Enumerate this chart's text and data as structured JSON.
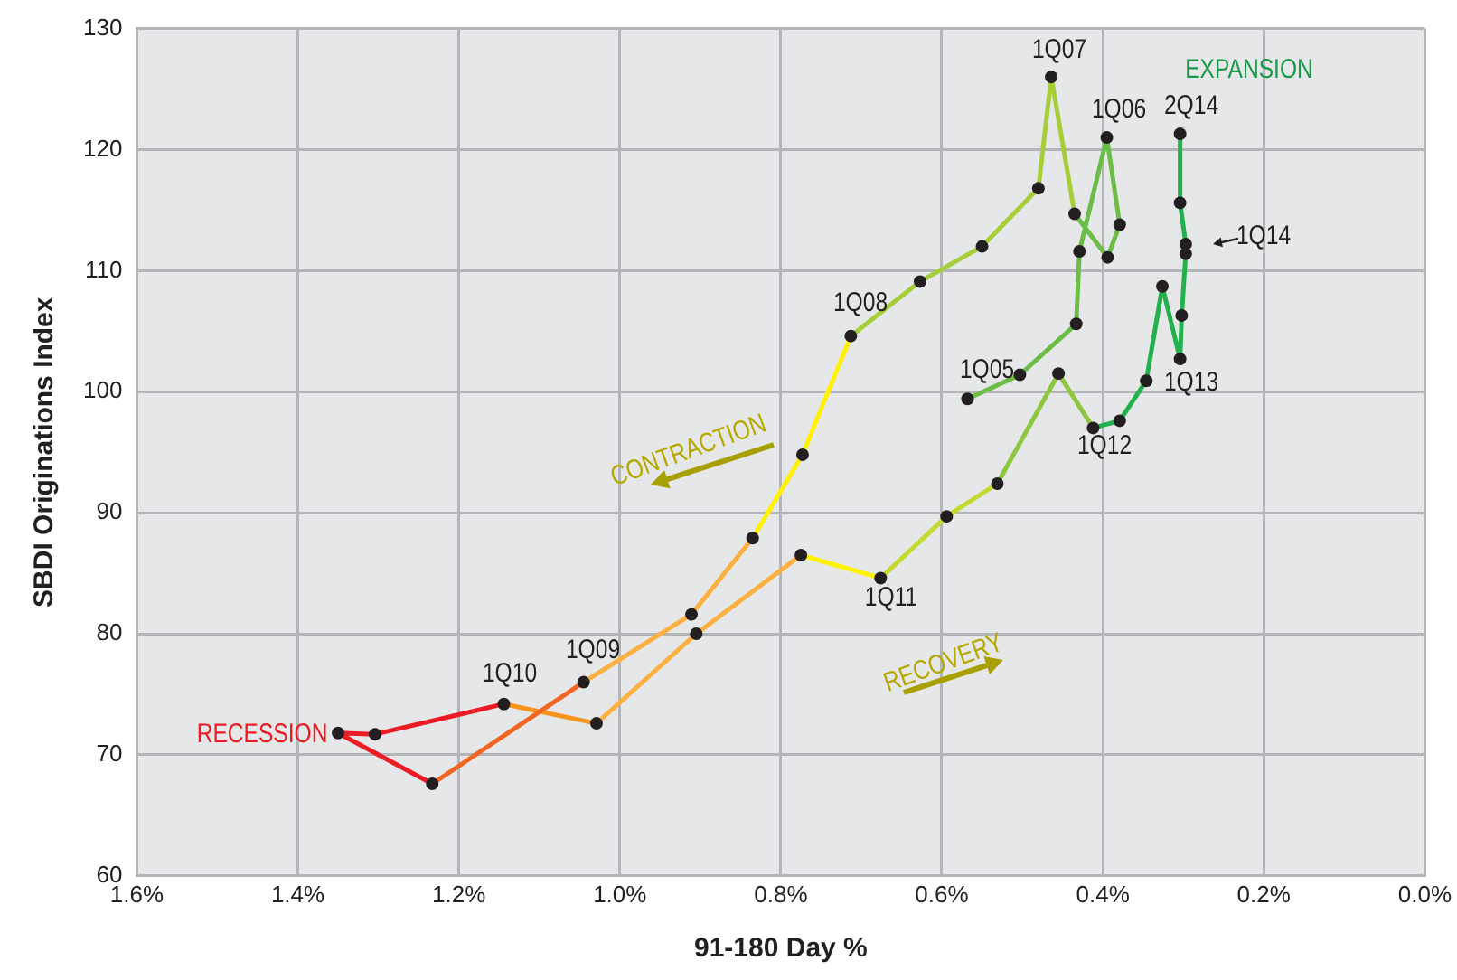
{
  "chart_data": {
    "type": "line",
    "xlabel": "91-180 Day %",
    "ylabel": "SBDI Originations Index",
    "xlim": [
      1.6,
      0
    ],
    "xticks": [
      {
        "value": 1.6,
        "label": "1.6%"
      },
      {
        "value": 1.4,
        "label": "1.4%"
      },
      {
        "value": 1.2,
        "label": "1.2%"
      },
      {
        "value": 1.0,
        "label": "1.0%"
      },
      {
        "value": 0.8,
        "label": "0.8%"
      },
      {
        "value": 0.6,
        "label": "0.6%"
      },
      {
        "value": 0.4,
        "label": "0.4%"
      },
      {
        "value": 0.2,
        "label": "0.2%"
      },
      {
        "value": 0,
        "label": "0.0%"
      }
    ],
    "ylim": [
      60,
      130
    ],
    "yticks": [
      60,
      70,
      80,
      90,
      100,
      110,
      120,
      130
    ],
    "grid": true,
    "legend": false,
    "marker": "none",
    "line_style": "solid",
    "series": [
      {
        "type": "line",
        "color": "#6cbd45",
        "x": [
          0.568,
          0.503,
          0.433,
          0.429,
          0.395,
          0.379,
          0.394,
          0.435
        ],
        "values": [
          99.4,
          101.4,
          105.6,
          111.6,
          121.0,
          113.8,
          111.1,
          114.7
        ]
      },
      {
        "type": "line",
        "color": "#a6ce39",
        "x": [
          0.435,
          0.464,
          0.48,
          0.55,
          0.627,
          0.713
        ],
        "values": [
          114.7,
          126.0,
          116.8,
          112.0,
          109.1,
          104.6
        ]
      },
      {
        "type": "line",
        "color": "#fff200",
        "x": [
          0.713,
          0.773,
          0.835
        ],
        "values": [
          104.6,
          94.8,
          87.9
        ]
      },
      {
        "type": "line",
        "color": "#fbb040",
        "x": [
          0.835,
          0.911,
          1.045
        ],
        "values": [
          87.9,
          81.6,
          76.0
        ]
      },
      {
        "type": "line",
        "color": "#f26522",
        "x": [
          1.045,
          1.233
        ],
        "values": [
          76.0,
          67.6
        ]
      },
      {
        "type": "line",
        "color": "#ed1c24",
        "x": [
          1.233,
          1.35,
          1.304,
          1.144
        ],
        "values": [
          67.6,
          71.8,
          71.7,
          74.2
        ]
      },
      {
        "type": "line",
        "color": "#f7941d",
        "x": [
          1.144,
          1.029
        ],
        "values": [
          74.2,
          72.6
        ]
      },
      {
        "type": "line",
        "color": "#fbb040",
        "x": [
          1.029,
          0.905,
          0.775
        ],
        "values": [
          72.6,
          80.0,
          86.5
        ]
      },
      {
        "type": "line",
        "color": "#fff200",
        "x": [
          0.775,
          0.676
        ],
        "values": [
          86.5,
          84.6
        ]
      },
      {
        "type": "line",
        "color": "#c4d82f",
        "x": [
          0.676,
          0.594,
          0.531
        ],
        "values": [
          84.6,
          89.7,
          92.4
        ]
      },
      {
        "type": "line",
        "color": "#8dc63f",
        "x": [
          0.531,
          0.455,
          0.412
        ],
        "values": [
          92.4,
          101.5,
          97.0
        ]
      },
      {
        "type": "line",
        "color": "#22b14c",
        "x": [
          0.412,
          0.379,
          0.346,
          0.326,
          0.304,
          0.302,
          0.297,
          0.297,
          0.304,
          0.304
        ],
        "values": [
          97.0,
          97.6,
          100.9,
          108.7,
          102.7,
          106.3,
          111.4,
          112.2,
          115.6,
          121.3
        ]
      },
      {
        "type": "scatter",
        "marker": "circle",
        "color": "#231f20",
        "x": [
          0.568,
          0.503,
          0.433,
          0.429,
          0.395,
          0.379,
          0.394,
          0.435,
          0.464,
          0.48,
          0.55,
          0.627,
          0.713,
          0.773,
          0.835,
          0.911,
          1.045,
          1.233,
          1.35,
          1.304,
          1.144,
          1.029,
          0.905,
          0.775,
          0.676,
          0.594,
          0.531,
          0.455,
          0.412,
          0.379,
          0.346,
          0.326,
          0.304,
          0.302,
          0.297,
          0.297,
          0.304,
          0.304
        ],
        "values": [
          99.4,
          101.4,
          105.6,
          111.6,
          121.0,
          113.8,
          111.1,
          114.7,
          126.0,
          116.8,
          112.0,
          109.1,
          104.6,
          94.8,
          87.9,
          81.6,
          76.0,
          67.6,
          71.8,
          71.7,
          74.2,
          72.6,
          80.0,
          86.5,
          84.6,
          89.7,
          92.4,
          101.5,
          97.0,
          97.6,
          100.9,
          108.7,
          102.7,
          106.3,
          111.4,
          112.2,
          115.6,
          121.3
        ]
      }
    ],
    "annotations": [
      "1Q05",
      "1Q06",
      "1Q07",
      "1Q08",
      "1Q09",
      "1Q10",
      "1Q11",
      "1Q12",
      "1Q13",
      "1Q14",
      "2Q14",
      {
        "text": "RECESSION",
        "x": 1.35,
        "y": 71.8
      },
      {
        "text": "CONTRACTION",
        "x": 0.773,
        "y": 94.8
      },
      "RECOVERY",
      "EXPANSION"
    ]
  }
}
